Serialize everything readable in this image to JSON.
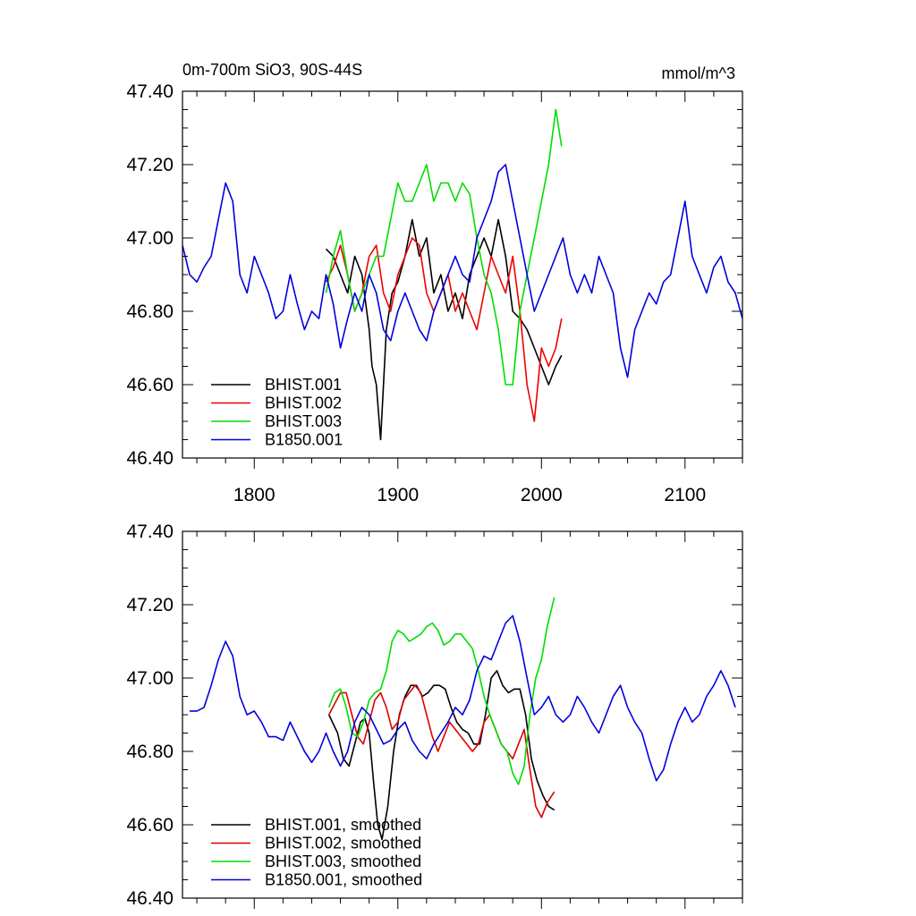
{
  "chart_data": [
    {
      "type": "line",
      "title": "0m-700m SiO3, 90S-44S",
      "units_label": "mmol/m^3",
      "xlim": [
        1750,
        2140
      ],
      "ylim": [
        46.4,
        47.4
      ],
      "yticks": [
        "46.40",
        "46.60",
        "46.80",
        "47.00",
        "47.20",
        "47.40"
      ],
      "xticks": [
        "1800",
        "1900",
        "2000",
        "2100"
      ],
      "legend_position": "bottom-left",
      "series": [
        {
          "name": "BHIST.001",
          "color": "#000000",
          "x": [
            1850,
            1855,
            1860,
            1865,
            1870,
            1875,
            1880,
            1882,
            1885,
            1888,
            1892,
            1896,
            1900,
            1905,
            1910,
            1915,
            1920,
            1925,
            1930,
            1935,
            1940,
            1945,
            1950,
            1955,
            1960,
            1965,
            1970,
            1975,
            1980,
            1985,
            1990,
            1995,
            2000,
            2005,
            2010,
            2014
          ],
          "values": [
            46.97,
            46.95,
            46.9,
            46.85,
            46.95,
            46.9,
            46.75,
            46.65,
            46.6,
            46.45,
            46.75,
            46.85,
            46.88,
            46.95,
            47.05,
            46.95,
            47.0,
            46.85,
            46.9,
            46.8,
            46.85,
            46.78,
            46.9,
            46.95,
            47.0,
            46.95,
            47.05,
            46.95,
            46.8,
            46.78,
            46.75,
            46.7,
            46.65,
            46.6,
            46.65,
            46.68
          ]
        },
        {
          "name": "BHIST.002",
          "color": "#ee0000",
          "x": [
            1850,
            1855,
            1860,
            1865,
            1870,
            1875,
            1880,
            1885,
            1890,
            1895,
            1900,
            1905,
            1910,
            1915,
            1920,
            1925,
            1930,
            1935,
            1940,
            1945,
            1950,
            1955,
            1960,
            1965,
            1970,
            1975,
            1980,
            1985,
            1990,
            1995,
            2000,
            2005,
            2010,
            2014
          ],
          "values": [
            46.88,
            46.92,
            46.98,
            46.9,
            46.8,
            46.85,
            46.95,
            46.98,
            46.85,
            46.8,
            46.9,
            46.95,
            47.0,
            46.98,
            46.85,
            46.8,
            46.85,
            46.9,
            46.8,
            46.85,
            46.8,
            46.75,
            46.85,
            46.95,
            46.9,
            46.85,
            46.95,
            46.8,
            46.6,
            46.5,
            46.7,
            46.65,
            46.7,
            46.78
          ]
        },
        {
          "name": "BHIST.003",
          "color": "#00dd00",
          "x": [
            1850,
            1855,
            1860,
            1865,
            1870,
            1875,
            1880,
            1885,
            1890,
            1895,
            1900,
            1905,
            1910,
            1915,
            1920,
            1925,
            1930,
            1935,
            1940,
            1945,
            1950,
            1955,
            1960,
            1965,
            1970,
            1975,
            1980,
            1985,
            1990,
            1995,
            2000,
            2005,
            2010,
            2014
          ],
          "values": [
            46.85,
            46.95,
            47.02,
            46.9,
            46.8,
            46.85,
            46.9,
            46.95,
            46.95,
            47.05,
            47.15,
            47.1,
            47.1,
            47.15,
            47.2,
            47.1,
            47.15,
            47.15,
            47.1,
            47.15,
            47.12,
            47.0,
            46.9,
            46.85,
            46.75,
            46.6,
            46.6,
            46.8,
            46.9,
            47.0,
            47.1,
            47.2,
            47.35,
            47.25
          ]
        },
        {
          "name": "B1850.001",
          "color": "#0000dd",
          "x": [
            1750,
            1755,
            1760,
            1765,
            1770,
            1775,
            1780,
            1785,
            1790,
            1795,
            1800,
            1805,
            1810,
            1815,
            1820,
            1825,
            1830,
            1835,
            1840,
            1845,
            1850,
            1855,
            1860,
            1865,
            1870,
            1875,
            1880,
            1885,
            1890,
            1895,
            1900,
            1905,
            1910,
            1915,
            1920,
            1925,
            1930,
            1935,
            1940,
            1945,
            1950,
            1955,
            1960,
            1965,
            1970,
            1975,
            1980,
            1985,
            1990,
            1995,
            2000,
            2005,
            2010,
            2015,
            2020,
            2025,
            2030,
            2035,
            2040,
            2045,
            2050,
            2055,
            2060,
            2065,
            2070,
            2075,
            2080,
            2085,
            2090,
            2095,
            2100,
            2105,
            2110,
            2115,
            2120,
            2125,
            2130,
            2135,
            2140
          ],
          "values": [
            46.98,
            46.9,
            46.88,
            46.92,
            46.95,
            47.05,
            47.15,
            47.1,
            46.9,
            46.85,
            46.95,
            46.9,
            46.85,
            46.78,
            46.8,
            46.9,
            46.82,
            46.75,
            46.8,
            46.78,
            46.9,
            46.82,
            46.7,
            46.78,
            46.85,
            46.8,
            46.9,
            46.85,
            46.75,
            46.72,
            46.8,
            46.85,
            46.8,
            46.75,
            46.72,
            46.8,
            46.85,
            46.9,
            46.95,
            46.9,
            46.88,
            47.0,
            47.05,
            47.1,
            47.18,
            47.2,
            47.1,
            47.0,
            46.9,
            46.8,
            46.85,
            46.9,
            46.95,
            47.0,
            46.9,
            46.85,
            46.9,
            46.85,
            46.95,
            46.9,
            46.85,
            46.7,
            46.62,
            46.75,
            46.8,
            46.85,
            46.82,
            46.88,
            46.9,
            47.0,
            47.1,
            46.95,
            46.9,
            46.85,
            46.92,
            46.95,
            46.88,
            46.85,
            46.78
          ]
        }
      ]
    },
    {
      "type": "line",
      "xlim": [
        1750,
        2140
      ],
      "ylim": [
        46.4,
        47.4
      ],
      "yticks": [
        "46.40",
        "46.60",
        "46.80",
        "47.00",
        "47.20",
        "47.40"
      ],
      "legend_position": "bottom-left",
      "series": [
        {
          "name": "BHIST.001, smoothed",
          "color": "#000000",
          "x": [
            1852,
            1858,
            1862,
            1866,
            1870,
            1874,
            1877,
            1880,
            1883,
            1886,
            1889,
            1893,
            1897,
            1901,
            1905,
            1909,
            1913,
            1917,
            1921,
            1925,
            1929,
            1933,
            1937,
            1941,
            1945,
            1949,
            1953,
            1957,
            1961,
            1965,
            1969,
            1973,
            1977,
            1981,
            1985,
            1989,
            1993,
            1997,
            2001,
            2005,
            2009
          ],
          "values": [
            46.9,
            46.85,
            46.78,
            46.76,
            46.82,
            46.88,
            46.89,
            46.85,
            46.72,
            46.6,
            46.56,
            46.65,
            46.8,
            46.9,
            46.95,
            46.98,
            46.98,
            46.95,
            46.96,
            46.98,
            46.98,
            46.97,
            46.92,
            46.88,
            46.86,
            46.85,
            46.82,
            46.82,
            46.9,
            47.0,
            47.02,
            46.98,
            46.96,
            46.97,
            46.97,
            46.9,
            46.78,
            46.72,
            46.68,
            46.65,
            46.64
          ]
        },
        {
          "name": "BHIST.002, smoothed",
          "color": "#dd0000",
          "x": [
            1852,
            1856,
            1860,
            1864,
            1868,
            1872,
            1876,
            1880,
            1884,
            1888,
            1892,
            1896,
            1900,
            1904,
            1908,
            1912,
            1916,
            1920,
            1924,
            1928,
            1932,
            1936,
            1940,
            1944,
            1948,
            1952,
            1956,
            1960,
            1964,
            1968,
            1972,
            1976,
            1980,
            1984,
            1988,
            1992,
            1996,
            2000,
            2004,
            2009
          ],
          "values": [
            46.9,
            46.93,
            46.96,
            46.96,
            46.9,
            46.84,
            46.82,
            46.88,
            46.94,
            46.96,
            46.92,
            46.86,
            46.88,
            46.94,
            46.96,
            46.98,
            46.96,
            46.9,
            46.84,
            46.8,
            46.84,
            46.88,
            46.86,
            46.84,
            46.82,
            46.8,
            46.82,
            46.88,
            46.9,
            46.86,
            46.82,
            46.8,
            46.78,
            46.82,
            46.86,
            46.75,
            46.65,
            46.62,
            46.66,
            46.69
          ]
        },
        {
          "name": "BHIST.003, smoothed",
          "color": "#00dd00",
          "x": [
            1852,
            1856,
            1860,
            1864,
            1868,
            1872,
            1876,
            1880,
            1884,
            1888,
            1892,
            1896,
            1900,
            1904,
            1908,
            1912,
            1916,
            1920,
            1924,
            1928,
            1932,
            1936,
            1940,
            1944,
            1948,
            1952,
            1956,
            1960,
            1964,
            1968,
            1972,
            1976,
            1980,
            1984,
            1988,
            1992,
            1996,
            2000,
            2004,
            2009
          ],
          "values": [
            46.92,
            46.96,
            46.97,
            46.92,
            46.85,
            46.84,
            46.88,
            46.94,
            46.96,
            46.97,
            47.02,
            47.1,
            47.13,
            47.12,
            47.1,
            47.11,
            47.12,
            47.14,
            47.15,
            47.13,
            47.09,
            47.1,
            47.12,
            47.12,
            47.1,
            47.08,
            47.02,
            46.95,
            46.9,
            46.86,
            46.82,
            46.8,
            46.74,
            46.71,
            46.76,
            46.9,
            47.0,
            47.05,
            47.14,
            47.22
          ]
        },
        {
          "name": "B1850.001, smoothed",
          "color": "#0000dd",
          "x": [
            1755,
            1760,
            1765,
            1770,
            1775,
            1780,
            1785,
            1790,
            1795,
            1800,
            1805,
            1810,
            1815,
            1820,
            1825,
            1830,
            1835,
            1840,
            1845,
            1850,
            1855,
            1860,
            1865,
            1870,
            1875,
            1880,
            1885,
            1890,
            1895,
            1900,
            1905,
            1910,
            1915,
            1920,
            1925,
            1930,
            1935,
            1940,
            1945,
            1950,
            1955,
            1960,
            1965,
            1970,
            1975,
            1980,
            1985,
            1990,
            1995,
            2000,
            2005,
            2010,
            2015,
            2020,
            2025,
            2030,
            2035,
            2040,
            2045,
            2050,
            2055,
            2060,
            2065,
            2070,
            2075,
            2080,
            2085,
            2090,
            2095,
            2100,
            2105,
            2110,
            2115,
            2120,
            2125,
            2130,
            2135
          ],
          "values": [
            46.91,
            46.91,
            46.92,
            46.98,
            47.05,
            47.1,
            47.06,
            46.95,
            46.9,
            46.91,
            46.88,
            46.84,
            46.84,
            46.83,
            46.88,
            46.84,
            46.8,
            46.77,
            46.8,
            46.85,
            46.8,
            46.76,
            46.8,
            46.88,
            46.92,
            46.9,
            46.86,
            46.82,
            46.83,
            46.86,
            46.88,
            46.83,
            46.8,
            46.78,
            46.82,
            46.85,
            46.88,
            46.92,
            46.9,
            46.94,
            47.02,
            47.06,
            47.05,
            47.1,
            47.15,
            47.17,
            47.1,
            47.0,
            46.9,
            46.92,
            46.95,
            46.9,
            46.88,
            46.9,
            46.95,
            46.92,
            46.88,
            46.85,
            46.9,
            46.95,
            46.98,
            46.92,
            46.88,
            46.85,
            46.78,
            46.72,
            46.75,
            46.82,
            46.88,
            46.92,
            46.88,
            46.9,
            46.95,
            46.98,
            47.02,
            46.98,
            46.92
          ]
        }
      ]
    }
  ]
}
